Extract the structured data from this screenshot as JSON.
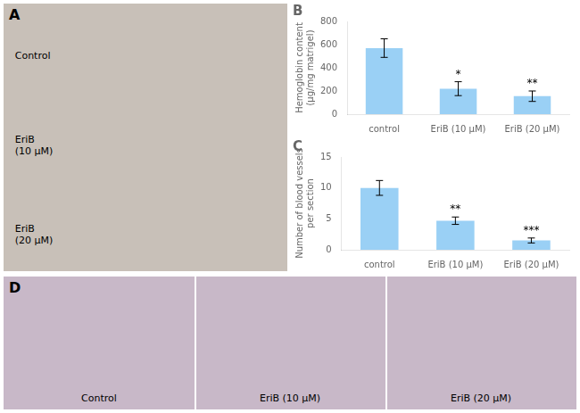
{
  "chart_data": [
    {
      "type": "panel",
      "title": "A",
      "color": "#c8c0b8",
      "annotations": [
        "Control",
        "EriB\n(10 μM)",
        "EriB\n(20 μM)"
      ]
    },
    {
      "type": "bar",
      "title": "B",
      "categories": [
        "control",
        "EriB (10 μM)",
        "EriB (20 μM)"
      ],
      "values": [
        570,
        220,
        155
      ],
      "errors": [
        80,
        60,
        45
      ],
      "ylabel": "Hemoglobin content\n(μg/mg matrigel)",
      "ylim": [
        0,
        800
      ],
      "yticks": [
        0,
        200,
        400,
        600,
        800
      ],
      "annotations": [
        {
          "category": "EriB (10 μM)",
          "text": "*"
        },
        {
          "category": "EriB (20 μM)",
          "text": "**"
        }
      ],
      "grid": false
    },
    {
      "type": "bar",
      "title": "C",
      "categories": [
        "control",
        "EriB (10 μM)",
        "EriB (20 μM)"
      ],
      "values": [
        10.0,
        4.7,
        1.5
      ],
      "errors": [
        1.2,
        0.6,
        0.4
      ],
      "ylabel": "Number of blood vessels\nper section",
      "ylim": [
        0,
        15
      ],
      "yticks": [
        0,
        5,
        10,
        15
      ],
      "annotations": [
        {
          "category": "EriB (10 μM)",
          "text": "**"
        },
        {
          "category": "EriB (20 μM)",
          "text": "***"
        }
      ],
      "grid": false
    },
    {
      "type": "panel",
      "title": "D",
      "color": "#c8b8c8",
      "annotations": [
        "Control",
        "EriB (10 μM)",
        "EriB (20 μM)"
      ]
    }
  ]
}
